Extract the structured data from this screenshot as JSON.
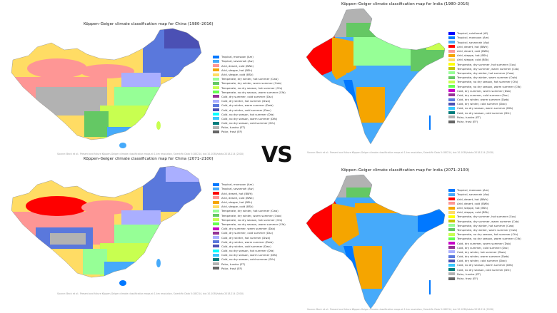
{
  "vs_text": "VS",
  "colors": {
    "Af": "#0000fe",
    "Am": "#0078ff",
    "Aw": "#46aafa",
    "BWh": "#fe0000",
    "BWk": "#fe9695",
    "BSh": "#f5a500",
    "BSk": "#ffdc64",
    "Csa": "#ffff00",
    "Csb": "#c6c700",
    "Cwa": "#96ff96",
    "Cwb": "#64c864",
    "Cwc": "#329632",
    "Cfa": "#c8ff50",
    "Cfb": "#64ff50",
    "Cfc": "#32c800",
    "Dsa": "#ff00fe",
    "Dsb": "#c800c8",
    "Dsc": "#963296",
    "Dsd": "#966496",
    "Dwa": "#aaafff",
    "Dwb": "#5a78dc",
    "Dwc": "#4b50b4",
    "Dwd": "#320087",
    "Dfa": "#00ffff",
    "Dfb": "#37c8ff",
    "Dfc": "#007d7d",
    "Dfd": "#00465f",
    "ET": "#b2b2b2",
    "EF": "#666666"
  },
  "china_1980": {
    "title": "Köppen–Geiger climate classification map for China (1980–2016)",
    "source": "Source: Beck et al.: Present and future Köppen-Geiger climate classification maps at 1-km resolution, Scientific Data 5:180214, doi:10.1038/sdata.2018.214 (2018)",
    "legend": [
      {
        "code": "Am",
        "label": "Tropical, monsoon (Am)"
      },
      {
        "code": "Aw",
        "label": "Tropical, savannah (Aw)"
      },
      {
        "code": "BWk",
        "label": "Arid, desert, cold (BWk)"
      },
      {
        "code": "BSh",
        "label": "Arid, steppe, hot (BSh)"
      },
      {
        "code": "BSk",
        "label": "Arid, steppe, cold (BSk)"
      },
      {
        "code": "Cwa",
        "label": "Temperate, dry winter, hot summer (Cwa)"
      },
      {
        "code": "Cwb",
        "label": "Temperate, dry winter, warm summer (Cwb)"
      },
      {
        "code": "Cfa",
        "label": "Temperate, no dry season, hot summer (Cfa)"
      },
      {
        "code": "Cfb",
        "label": "Temperate, no dry season, warm summer (Cfb)"
      },
      {
        "code": "Dsc",
        "label": "Cold, dry summer, cold summer (Dsc)"
      },
      {
        "code": "Dwa",
        "label": "Cold, dry winter, hot summer (Dwa)"
      },
      {
        "code": "Dwb",
        "label": "Cold, dry winter, warm summer (Dwb)"
      },
      {
        "code": "Dwc",
        "label": "Cold, dry winter, cold summer (Dwc)"
      },
      {
        "code": "Dfa",
        "label": "Cold, no dry season, hot summer (Dfa)"
      },
      {
        "code": "Dfb",
        "label": "Cold, no dry season, warm summer (Dfb)"
      },
      {
        "code": "Dfc",
        "label": "Cold, no dry season, cold summer (Dfc)"
      },
      {
        "code": "ET",
        "label": "Polar, tundra (ET)"
      },
      {
        "code": "EF",
        "label": "Polar, frost (EF)"
      }
    ]
  },
  "china_2071": {
    "title": "Köppen–Geiger climate classification map for China (2071–2100)",
    "source": "Source: Beck et al.: Present and future Köppen-Geiger climate classification maps at 1-km resolution, Scientific Data 5:180214, doi:10.1038/sdata.2018.214 (2018)",
    "legend": [
      {
        "code": "Am",
        "label": "Tropical, monsoon (Am)"
      },
      {
        "code": "Aw",
        "label": "Tropical, savannah (Aw)"
      },
      {
        "code": "BWh",
        "label": "Arid, desert, hot (BWh)"
      },
      {
        "code": "BWk",
        "label": "Arid, desert, cold (BWk)"
      },
      {
        "code": "BSh",
        "label": "Arid, steppe, hot (BSh)"
      },
      {
        "code": "BSk",
        "label": "Arid, steppe, cold (BSk)"
      },
      {
        "code": "Cwa",
        "label": "Temperate, dry winter, hot summer (Cwa)"
      },
      {
        "code": "Cwb",
        "label": "Temperate, dry winter, warm summer (Cwb)"
      },
      {
        "code": "Cfa",
        "label": "Temperate, no dry season, hot summer (Cfa)"
      },
      {
        "code": "Cfb",
        "label": "Temperate, no dry season, warm summer (Cfb)"
      },
      {
        "code": "Dsb",
        "label": "Cold, dry summer, warm summer (Dsb)"
      },
      {
        "code": "Dsc",
        "label": "Cold, dry summer, cold summer (Dsc)"
      },
      {
        "code": "Dwa",
        "label": "Cold, dry winter, hot summer (Dwa)"
      },
      {
        "code": "Dwb",
        "label": "Cold, dry winter, warm summer (Dwb)"
      },
      {
        "code": "Dwc",
        "label": "Cold, dry winter, cold summer (Dwc)"
      },
      {
        "code": "Dfa",
        "label": "Cold, no dry season, hot summer (Dfa)"
      },
      {
        "code": "Dfb",
        "label": "Cold, no dry season, warm summer (Dfb)"
      },
      {
        "code": "Dfc",
        "label": "Cold, no dry season, cold summer (Dfc)"
      },
      {
        "code": "ET",
        "label": "Polar, tundra (ET)"
      },
      {
        "code": "EF",
        "label": "Polar, frost (EF)"
      }
    ]
  },
  "india_1980": {
    "title": "Köppen–Geiger climate classification map for India (1980–2016)",
    "source": "Source: Beck et al.: Present and future Köppen-Geiger climate classification maps at 1-km resolution, Scientific Data 5:180214, doi:10.1038/sdata.2018.214 (2018)",
    "legend": [
      {
        "code": "Af",
        "label": "Tropical, rainforest (Af)"
      },
      {
        "code": "Am",
        "label": "Tropical, monsoon (Am)"
      },
      {
        "code": "Aw",
        "label": "Tropical, savannah (Aw)"
      },
      {
        "code": "BWh",
        "label": "Arid, desert, hot (BWh)"
      },
      {
        "code": "BWk",
        "label": "Arid, desert, cold (BWk)"
      },
      {
        "code": "BSh",
        "label": "Arid, steppe, hot (BSh)"
      },
      {
        "code": "BSk",
        "label": "Arid, steppe, cold (BSk)"
      },
      {
        "code": "Csa",
        "label": "Temperate, dry summer, hot summer (Csa)"
      },
      {
        "code": "Csb",
        "label": "Temperate, dry summer, warm summer (Csb)"
      },
      {
        "code": "Cwa",
        "label": "Temperate, dry winter, hot summer (Cwa)"
      },
      {
        "code": "Cwb",
        "label": "Temperate, dry winter, warm summer (Cwb)"
      },
      {
        "code": "Cfa",
        "label": "Temperate, no dry season, hot summer (Cfa)"
      },
      {
        "code": "Cfb",
        "label": "Temperate, no dry season, warm summer (Cfb)"
      },
      {
        "code": "Dsb",
        "label": "Cold, dry summer, warm summer (Dsb)"
      },
      {
        "code": "Dsc",
        "label": "Cold, dry summer, cold summer (Dsc)"
      },
      {
        "code": "Dwb",
        "label": "Cold, dry winter, warm summer (Dwb)"
      },
      {
        "code": "Dwc",
        "label": "Cold, dry winter, cold summer (Dwc)"
      },
      {
        "code": "Dfb",
        "label": "Cold, no dry season, warm summer (Dfb)"
      },
      {
        "code": "Dfc",
        "label": "Cold, no dry season, cold summer (Dfc)"
      },
      {
        "code": "ET",
        "label": "Polar, tundra (ET)"
      },
      {
        "code": "EF",
        "label": "Polar, frost (EF)"
      }
    ]
  },
  "india_2071": {
    "title": "Köppen–Geiger climate classification map for India (2071–2100)",
    "source": "Source: Beck et al.: Present and future Köppen-Geiger climate classification maps at 1-km resolution, Scientific Data 5:180214, doi:10.1038/sdata.2018.214 (2018)",
    "legend": [
      {
        "code": "Am",
        "label": "Tropical, monsoon (Am)"
      },
      {
        "code": "Aw",
        "label": "Tropical, savannah (Aw)"
      },
      {
        "code": "BWh",
        "label": "Arid, desert, hot (BWh)"
      },
      {
        "code": "BWk",
        "label": "Arid, desert, cold (BWk)"
      },
      {
        "code": "BSh",
        "label": "Arid, steppe, hot (BSh)"
      },
      {
        "code": "BSk",
        "label": "Arid, steppe, cold (BSk)"
      },
      {
        "code": "Csa",
        "label": "Temperate, dry summer, hot summer (Csa)"
      },
      {
        "code": "Csb",
        "label": "Temperate, dry summer, warm summer (Csb)"
      },
      {
        "code": "Cwa",
        "label": "Temperate, dry winter, hot summer (Cwa)"
      },
      {
        "code": "Cwb",
        "label": "Temperate, dry winter, warm summer (Cwb)"
      },
      {
        "code": "Cfa",
        "label": "Temperate, no dry season, hot summer (Cfa)"
      },
      {
        "code": "Cfb",
        "label": "Temperate, no dry season, warm summer (Cfb)"
      },
      {
        "code": "Dsb",
        "label": "Cold, dry summer, warm summer (Dsb)"
      },
      {
        "code": "Dsc",
        "label": "Cold, dry summer, cold summer (Dsc)"
      },
      {
        "code": "Dwa",
        "label": "Cold, dry winter, hot summer (Dwa)"
      },
      {
        "code": "Dwb",
        "label": "Cold, dry winter, warm summer (Dwb)"
      },
      {
        "code": "Dwc",
        "label": "Cold, dry winter, cold summer (Dwc)"
      },
      {
        "code": "Dfb",
        "label": "Cold, no dry season, warm summer (Dfb)"
      },
      {
        "code": "Dfc",
        "label": "Cold, no dry season, cold summer (Dfc)"
      },
      {
        "code": "ET",
        "label": "Polar, tundra (ET)"
      },
      {
        "code": "EF",
        "label": "Polar, frost (EF)"
      }
    ]
  }
}
